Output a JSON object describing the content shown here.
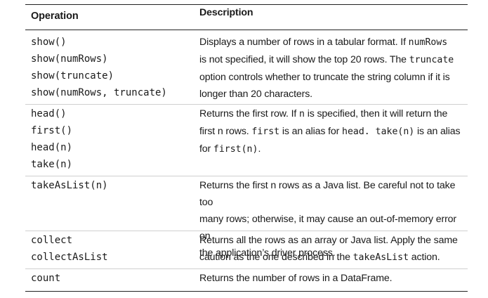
{
  "header": {
    "operation": "Operation",
    "description": "Description"
  },
  "rows": [
    {
      "ops": [
        "show()",
        "show(numRows)",
        "show(truncate)",
        "show(numRows, truncate)"
      ],
      "desc": [
        {
          "t": "Displays a number of rows in a tabular format. If ",
          "m": "numRows"
        },
        {
          "t": "is not specified, it will show the top 20 rows. The ",
          "m": "truncate"
        },
        {
          "t": "option controls whether to truncate the string column if it is"
        },
        {
          "t": "longer than 20 characters."
        }
      ]
    },
    {
      "ops": [
        "head()",
        "first()",
        "head(n)",
        "take(n)"
      ],
      "desc": [
        {
          "t": "Returns the first row. If ",
          "m": "n",
          "t2": " is specified, then it will return the"
        },
        {
          "t": "first n rows. ",
          "m": "first",
          "t2": " is an alias for ",
          "m2": "head. take(n)",
          "t3": " is an alias"
        },
        {
          "t": "for ",
          "m": "first(n)",
          "t2": "."
        }
      ]
    },
    {
      "ops": [
        "takeAsList(n)"
      ],
      "desc": [
        {
          "t": "Returns the first n rows as a Java list. Be careful not to take too"
        },
        {
          "t": "many rows; otherwise, it may cause an out-of-memory error on"
        },
        {
          "t": "the application’s driver process."
        }
      ]
    },
    {
      "ops": [
        "collect",
        "collectAsList"
      ],
      "desc": [
        {
          "t": "Returns all the rows as an array or Java list. Apply the same"
        },
        {
          "t": "caution as the one described in the ",
          "m": "takeAsList",
          "t2": " action."
        }
      ]
    },
    {
      "ops": [
        "count"
      ],
      "desc": [
        {
          "t": "Returns the number of rows in a DataFrame."
        }
      ]
    }
  ]
}
